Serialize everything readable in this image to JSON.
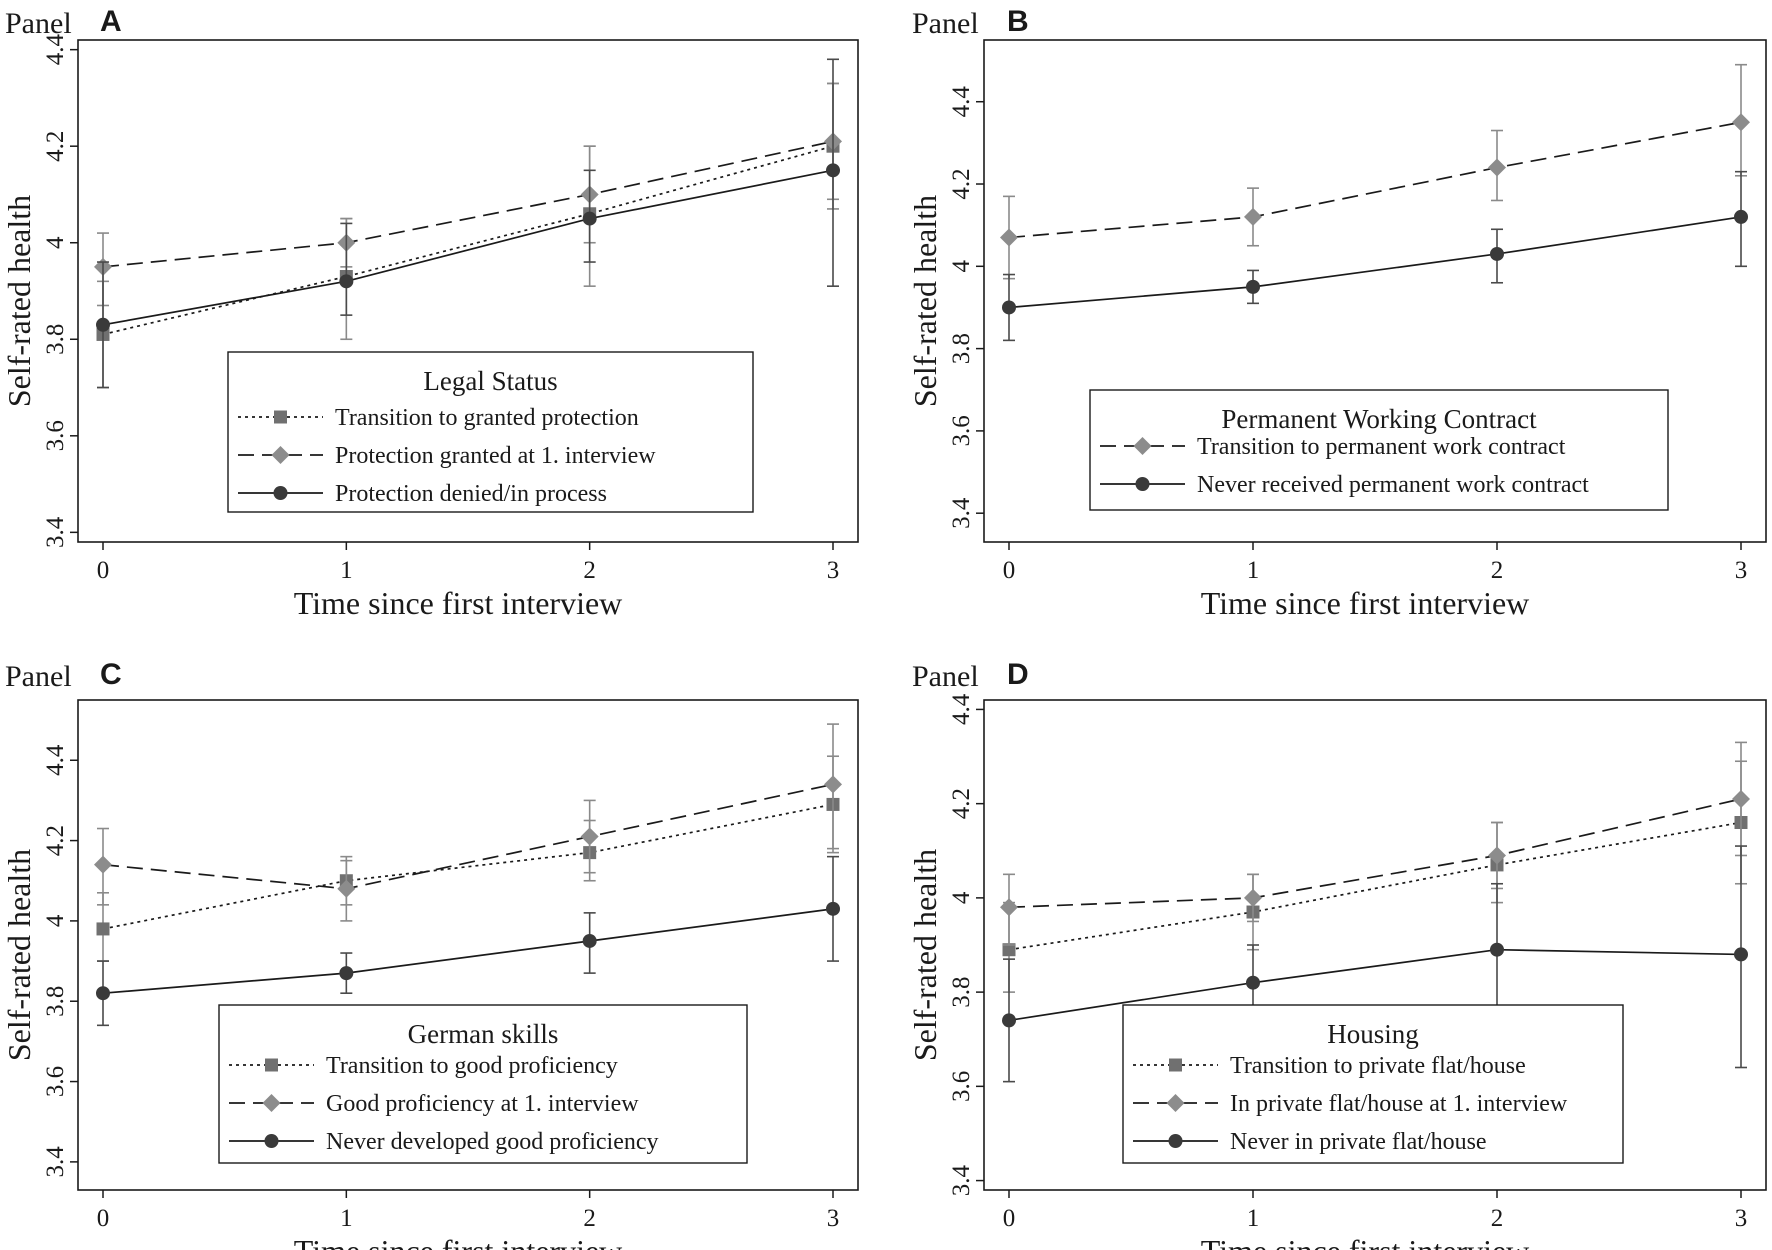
{
  "figure": {
    "panel_word": "Panel",
    "x_axis_title": "Time since first interview",
    "y_axis_title": "Self-rated health"
  },
  "chart_data": [
    {
      "panel": "A",
      "type": "line",
      "title": "Legal Status",
      "xlabel": "Time since first interview",
      "ylabel": "Self-rated health",
      "x": [
        0,
        1,
        2,
        3
      ],
      "x_ticks": [
        "0",
        "1",
        "2",
        "3"
      ],
      "y_ticks": [
        "3.4",
        "3.6",
        "3.8",
        "4",
        "4.2",
        "4.4"
      ],
      "ylim": [
        3.38,
        4.42
      ],
      "series": [
        {
          "name": "Transition to granted protection",
          "style": "dotted",
          "marker": "square",
          "color": "#707070",
          "values": [
            3.81,
            3.93,
            4.06,
            4.2
          ],
          "ci_low": [
            3.7,
            3.8,
            3.91,
            4.07
          ],
          "ci_high": [
            3.92,
            4.05,
            4.2,
            4.33
          ]
        },
        {
          "name": "Protection granted at 1. interview",
          "style": "dashed",
          "marker": "diamond",
          "color": "#8c8c8c",
          "values": [
            3.95,
            4.0,
            4.1,
            4.21
          ],
          "ci_low": [
            3.87,
            3.95,
            4.0,
            4.09
          ],
          "ci_high": [
            4.02,
            4.05,
            4.2,
            4.33
          ]
        },
        {
          "name": "Protection denied/in process",
          "style": "solid",
          "marker": "circle",
          "color": "#3a3a3a",
          "values": [
            3.83,
            3.92,
            4.05,
            4.15
          ],
          "ci_low": [
            3.7,
            3.85,
            3.96,
            3.91
          ],
          "ci_high": [
            3.96,
            4.04,
            4.15,
            4.38
          ]
        }
      ]
    },
    {
      "panel": "B",
      "type": "line",
      "title": "Permanent Working Contract",
      "xlabel": "Time since first interview",
      "ylabel": "Self-rated health",
      "x": [
        0,
        1,
        2,
        3
      ],
      "x_ticks": [
        "0",
        "1",
        "2",
        "3"
      ],
      "y_ticks": [
        "3.4",
        "3.6",
        "3.8",
        "4",
        "4.2",
        "4.4"
      ],
      "ylim": [
        3.33,
        4.55
      ],
      "series": [
        {
          "name": "Transition to permanent work contract",
          "style": "dashed",
          "marker": "diamond",
          "color": "#8c8c8c",
          "values": [
            4.07,
            4.12,
            4.24,
            4.35
          ],
          "ci_low": [
            3.97,
            4.05,
            4.16,
            4.22
          ],
          "ci_high": [
            4.17,
            4.19,
            4.33,
            4.49
          ]
        },
        {
          "name": "Never received permanent work contract",
          "style": "solid",
          "marker": "circle",
          "color": "#3a3a3a",
          "values": [
            3.9,
            3.95,
            4.03,
            4.12
          ],
          "ci_low": [
            3.82,
            3.91,
            3.96,
            4.0
          ],
          "ci_high": [
            3.98,
            3.99,
            4.09,
            4.23
          ]
        }
      ]
    },
    {
      "panel": "C",
      "type": "line",
      "title": "German skills",
      "xlabel": "Time since first interview",
      "ylabel": "Self-rated health",
      "x": [
        0,
        1,
        2,
        3
      ],
      "x_ticks": [
        "0",
        "1",
        "2",
        "3"
      ],
      "y_ticks": [
        "3.4",
        "3.6",
        "3.8",
        "4",
        "4.2",
        "4.4"
      ],
      "ylim": [
        3.33,
        4.55
      ],
      "series": [
        {
          "name": "Transition to good proficiency",
          "style": "dotted",
          "marker": "square",
          "color": "#707070",
          "values": [
            3.98,
            4.1,
            4.17,
            4.29
          ],
          "ci_low": [
            3.9,
            4.04,
            4.1,
            4.17
          ],
          "ci_high": [
            4.07,
            4.16,
            4.25,
            4.41
          ]
        },
        {
          "name": "Good proficiency at 1. interview",
          "style": "dashed",
          "marker": "diamond",
          "color": "#8c8c8c",
          "values": [
            4.14,
            4.08,
            4.21,
            4.34
          ],
          "ci_low": [
            4.04,
            4.0,
            4.12,
            4.18
          ],
          "ci_high": [
            4.23,
            4.15,
            4.3,
            4.49
          ]
        },
        {
          "name": "Never developed good proficiency",
          "style": "solid",
          "marker": "circle",
          "color": "#3a3a3a",
          "values": [
            3.82,
            3.87,
            3.95,
            4.03
          ],
          "ci_low": [
            3.74,
            3.82,
            3.87,
            3.9
          ],
          "ci_high": [
            3.9,
            3.92,
            4.02,
            4.16
          ]
        }
      ]
    },
    {
      "panel": "D",
      "type": "line",
      "title": "Housing",
      "xlabel": "Time since first interview",
      "ylabel": "Self-rated health",
      "x": [
        0,
        1,
        2,
        3
      ],
      "x_ticks": [
        "0",
        "1",
        "2",
        "3"
      ],
      "y_ticks": [
        "3.4",
        "3.6",
        "3.8",
        "4",
        "4.2",
        "4.4"
      ],
      "ylim": [
        3.38,
        4.42
      ],
      "series": [
        {
          "name": "Transition to private flat/house",
          "style": "dotted",
          "marker": "square",
          "color": "#707070",
          "values": [
            3.89,
            3.97,
            4.07,
            4.16
          ],
          "ci_low": [
            3.8,
            3.89,
            3.99,
            4.03
          ],
          "ci_high": [
            3.99,
            4.05,
            4.16,
            4.29
          ]
        },
        {
          "name": "In private flat/house at 1. interview",
          "style": "dashed",
          "marker": "diamond",
          "color": "#8c8c8c",
          "values": [
            3.98,
            4.0,
            4.09,
            4.21
          ],
          "ci_low": [
            3.9,
            3.95,
            4.02,
            4.09
          ],
          "ci_high": [
            4.05,
            4.05,
            4.16,
            4.33
          ]
        },
        {
          "name": "Never in private flat/house",
          "style": "solid",
          "marker": "circle",
          "color": "#3a3a3a",
          "values": [
            3.74,
            3.82,
            3.89,
            3.88
          ],
          "ci_low": [
            3.61,
            3.74,
            3.75,
            3.64
          ],
          "ci_high": [
            3.87,
            3.9,
            4.03,
            4.11
          ]
        }
      ]
    }
  ]
}
